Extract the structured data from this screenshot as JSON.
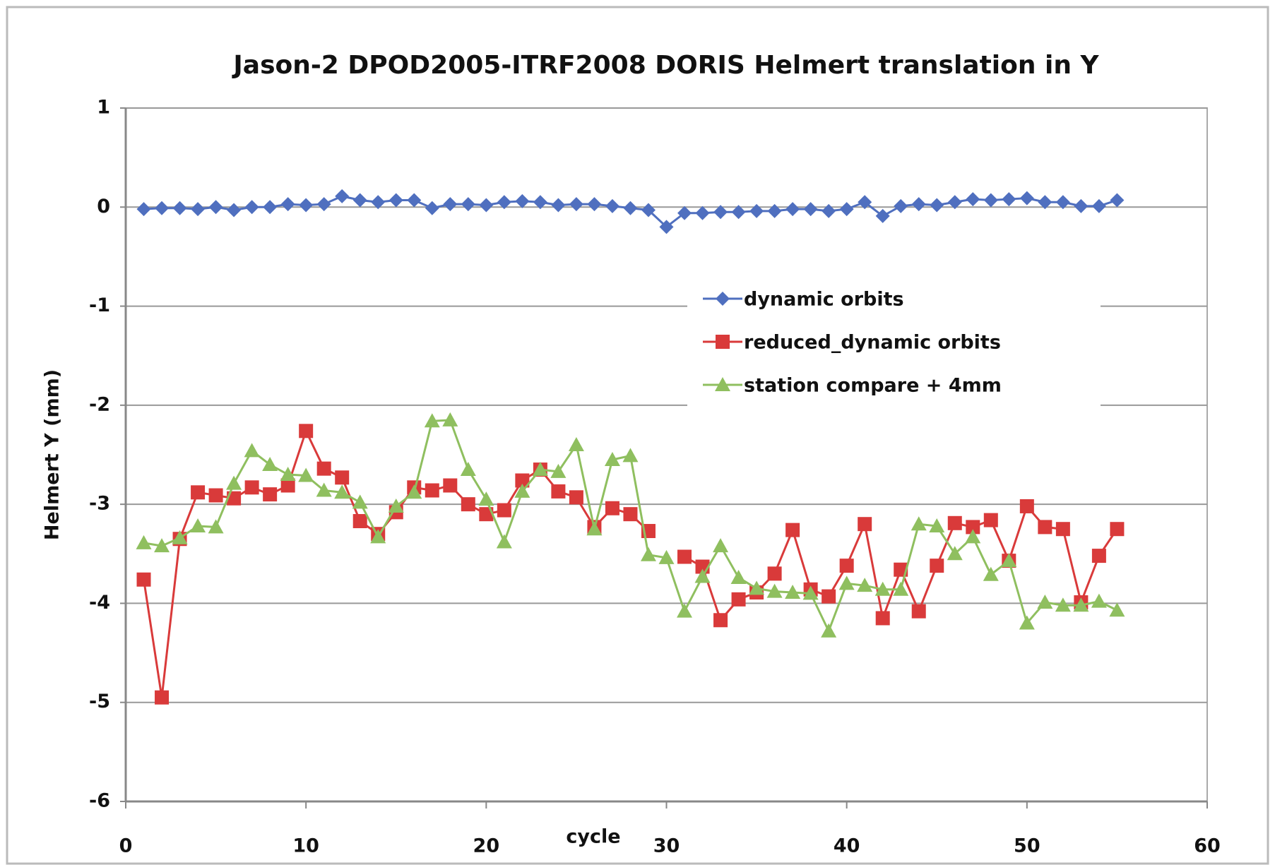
{
  "chart_data": {
    "type": "line",
    "title": "Jason-2 DPOD2005-ITRF2008 DORIS Helmert translation in Y",
    "x_label": "cycle",
    "y_label": "Helmert Y (mm)",
    "x": [
      1,
      2,
      3,
      4,
      5,
      6,
      7,
      8,
      9,
      10,
      11,
      12,
      13,
      14,
      15,
      16,
      17,
      18,
      19,
      20,
      21,
      22,
      23,
      24,
      25,
      26,
      27,
      28,
      29,
      30,
      31,
      32,
      33,
      34,
      35,
      36,
      37,
      38,
      39,
      40,
      41,
      42,
      43,
      44,
      45,
      46,
      47,
      48,
      49,
      50,
      51,
      52,
      53,
      54,
      55
    ],
    "series": [
      {
        "name": "dynamic orbits",
        "color": "#4f6fbf",
        "marker": "diamond",
        "values": [
          -0.02,
          -0.01,
          -0.01,
          -0.02,
          0,
          -0.03,
          0,
          0,
          0.03,
          0.02,
          0.03,
          0.11,
          0.07,
          0.05,
          0.07,
          0.07,
          -0.01,
          0.03,
          0.03,
          0.02,
          0.05,
          0.06,
          0.05,
          0.02,
          0.03,
          0.03,
          0.01,
          -0.01,
          -0.03,
          -0.2,
          -0.06,
          -0.06,
          -0.05,
          -0.05,
          -0.04,
          -0.04,
          -0.02,
          -0.02,
          -0.04,
          -0.02,
          0.05,
          -0.09,
          0.01,
          0.03,
          0.02,
          0.05,
          0.08,
          0.07,
          0.08,
          0.09,
          0.05,
          0.05,
          0.01,
          0.01,
          0.07
        ]
      },
      {
        "name": "reduced_dynamic orbits",
        "color": "#d93a3a",
        "marker": "square",
        "values": [
          -3.76,
          -4.95,
          -3.35,
          -2.88,
          -2.91,
          -2.94,
          -2.83,
          -2.9,
          -2.81,
          -2.26,
          -2.64,
          -2.73,
          -3.17,
          -3.3,
          -3.08,
          -2.83,
          -2.86,
          -2.81,
          -3.0,
          -3.1,
          -3.06,
          -2.76,
          -2.65,
          -2.87,
          -2.93,
          -3.23,
          -3.04,
          -3.1,
          -3.27,
          null,
          -3.53,
          -3.63,
          -4.17,
          -3.96,
          -3.89,
          -3.7,
          -3.26,
          -3.86,
          -3.93,
          -3.62,
          -3.2,
          -4.15,
          -3.66,
          -4.08,
          -3.62,
          -3.19,
          -3.23,
          -3.16,
          -3.57,
          -3.02,
          -3.23,
          -3.25,
          -3.99,
          -3.52,
          -3.25
        ]
      },
      {
        "name": "station compare + 4mm",
        "color": "#8fbf5f",
        "marker": "triangle",
        "values": [
          -3.39,
          -3.42,
          -3.34,
          -3.22,
          -3.23,
          -2.79,
          -2.46,
          -2.6,
          -2.7,
          -2.71,
          -2.86,
          -2.88,
          -2.98,
          -3.33,
          -3.02,
          -2.88,
          -2.16,
          -2.15,
          -2.65,
          -2.95,
          -3.38,
          -2.87,
          -2.65,
          -2.67,
          -2.4,
          -3.25,
          -2.55,
          -2.51,
          -3.51,
          -3.54,
          -4.08,
          -3.73,
          -3.42,
          -3.74,
          -3.85,
          -3.88,
          -3.89,
          -3.9,
          -4.28,
          -3.8,
          -3.82,
          -3.86,
          -3.86,
          -3.2,
          -3.22,
          -3.5,
          -3.33,
          -3.71,
          -3.57,
          -4.2,
          -3.99,
          -4.02,
          -4.02,
          -3.98,
          -4.07
        ]
      }
    ],
    "xlim": [
      0,
      60
    ],
    "xticks": [
      0,
      10,
      20,
      30,
      40,
      50,
      60
    ],
    "ylim": [
      -6,
      1
    ],
    "yticks": [
      -6,
      -5,
      -4,
      -3,
      -2,
      -1,
      0,
      1
    ],
    "grid": true,
    "legend": "upper right"
  }
}
